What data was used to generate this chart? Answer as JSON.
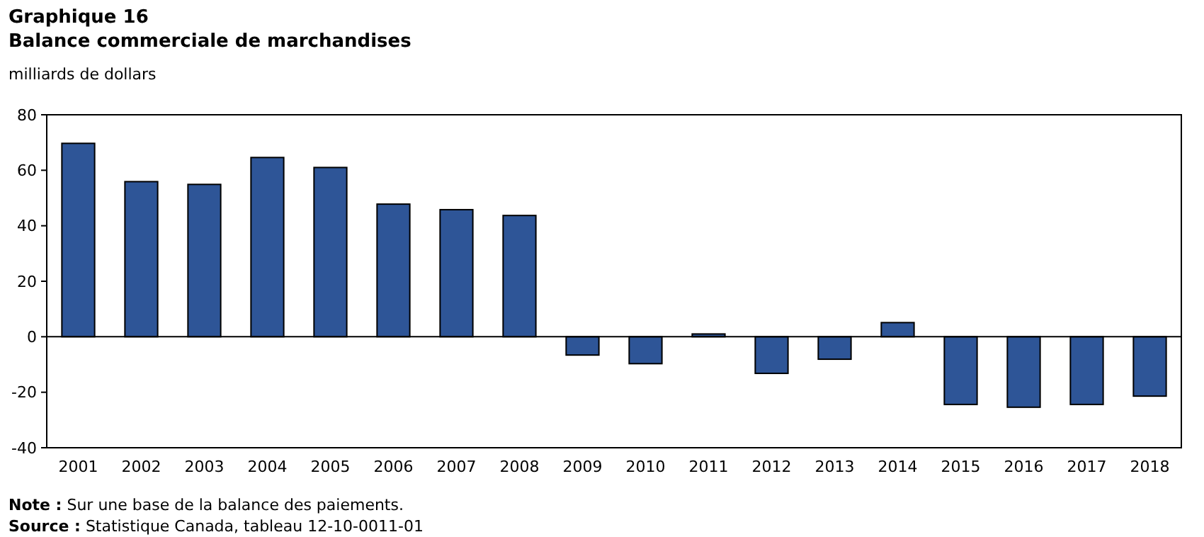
{
  "chart_data": {
    "type": "bar",
    "title": "Graphique  16",
    "subtitle": "Balance commerciale de marchandises",
    "ylabel": "milliards de dollars",
    "categories": [
      "2001",
      "2002",
      "2003",
      "2004",
      "2005",
      "2006",
      "2007",
      "2008",
      "2009",
      "2010",
      "2011",
      "2012",
      "2013",
      "2014",
      "2015",
      "2016",
      "2017",
      "2018"
    ],
    "values": [
      69.7,
      55.9,
      54.9,
      64.6,
      61,
      47.8,
      45.8,
      43.7,
      -6.6,
      -9.7,
      1,
      -13.2,
      -8.1,
      5.1,
      -24.4,
      -25.4,
      -24.4,
      -21.4
    ],
    "color": "#2e5597",
    "ylim": [
      -40,
      80
    ],
    "yticks": [
      -40,
      -20,
      0,
      20,
      40,
      60,
      80
    ],
    "annotations": [
      "Note : Sur une base de la balance des paiements.",
      "Source : Statistique Canada, tableau 12-10-0011-01"
    ]
  }
}
